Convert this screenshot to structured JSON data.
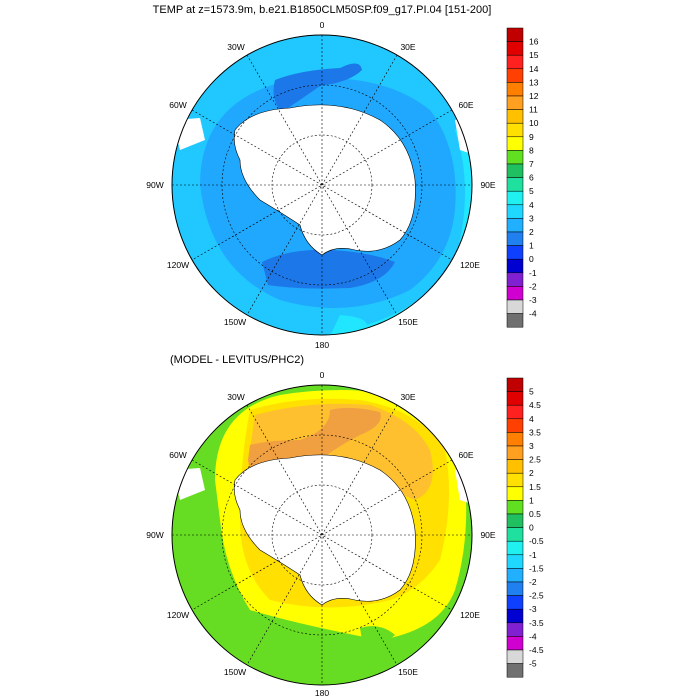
{
  "panel1": {
    "title": "TEMP at z=1573.9m, b.e21.B1850CLM50SP.f09_g17.PI.04 [151-200]",
    "lon_labels": {
      "n": "0",
      "ne": "30E",
      "ene": "60E",
      "e": "90E",
      "ese": "120E",
      "sse": "150E",
      "s": "180",
      "ssw": "150W",
      "wsw": "120W",
      "w": "90W",
      "wnw": "60W",
      "nnw": "30W"
    },
    "colorbar": {
      "labels": [
        "16",
        "15",
        "14",
        "13",
        "12",
        "11",
        "10",
        "9",
        "8",
        "7",
        "6",
        "5",
        "4",
        "3",
        "2",
        "1",
        "0",
        "-1",
        "-2",
        "-3",
        "-4"
      ],
      "colors": [
        "#c00000",
        "#e00000",
        "#ff2020",
        "#ff4000",
        "#ff8000",
        "#ffa020",
        "#ffc000",
        "#ffe000",
        "#ffff00",
        "#60e020",
        "#20c060",
        "#20e0a0",
        "#20f0f0",
        "#20d8ff",
        "#20b0ff",
        "#2080f0",
        "#1040ff",
        "#0000d0",
        "#8020d0",
        "#d000d0",
        "#d8d8d8",
        "#707070"
      ]
    }
  },
  "panel2": {
    "title": "(MODEL - LEVITUS/PHC2)",
    "lon_labels": {
      "n": "0",
      "ne": "30E",
      "ene": "60E",
      "e": "90E",
      "ese": "120E",
      "sse": "150E",
      "s": "180",
      "ssw": "150W",
      "wsw": "120W",
      "w": "90W",
      "wnw": "60W",
      "nnw": "30W"
    },
    "colorbar": {
      "labels": [
        "5",
        "4.5",
        "4",
        "3.5",
        "3",
        "2.5",
        "2",
        "1.5",
        "1",
        "0.5",
        "0",
        "-0.5",
        "-1",
        "-1.5",
        "-2",
        "-2.5",
        "-3",
        "-3.5",
        "-4",
        "-4.5",
        "-5"
      ],
      "colors": [
        "#c00000",
        "#e00000",
        "#ff2020",
        "#ff4000",
        "#ff8000",
        "#ffa020",
        "#ffc000",
        "#ffe000",
        "#ffff00",
        "#60e020",
        "#20c060",
        "#20e0a0",
        "#20f0f0",
        "#20d8ff",
        "#20b0ff",
        "#2080f0",
        "#1040ff",
        "#0000d0",
        "#8020d0",
        "#d000d0",
        "#d8d8d8",
        "#707070"
      ]
    }
  }
}
